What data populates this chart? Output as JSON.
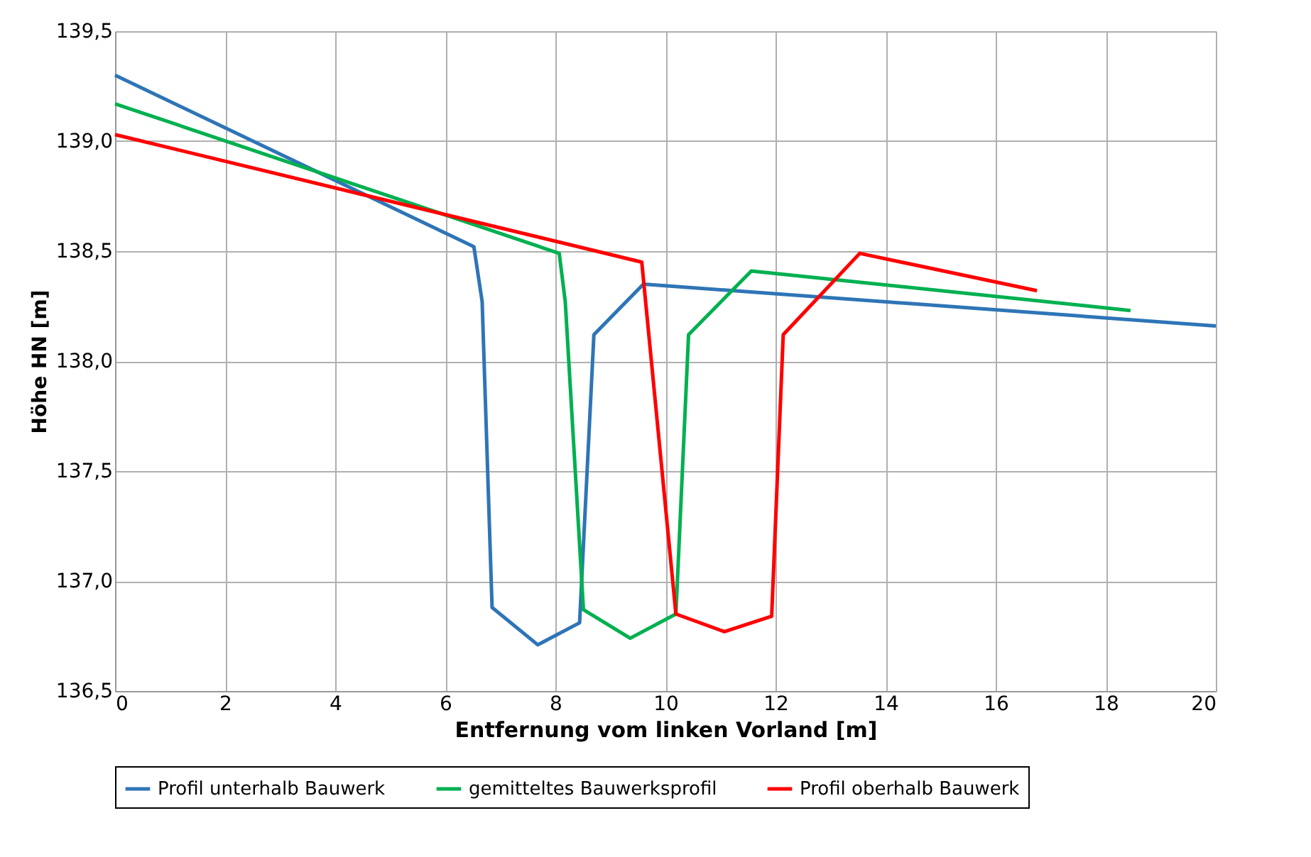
{
  "chart_data": {
    "type": "line",
    "xlabel": "Entfernung vom linken Vorland [m]",
    "ylabel": "Höhe HN [m]",
    "xlim": [
      0,
      20
    ],
    "xticks": [
      0,
      2,
      4,
      6,
      8,
      10,
      12,
      14,
      16,
      18,
      20
    ],
    "ylim": [
      136.5,
      139.5
    ],
    "yticks": [
      {
        "value": 136.5,
        "label": "136,5"
      },
      {
        "value": 137.0,
        "label": "137,0"
      },
      {
        "value": 137.5,
        "label": "137,5"
      },
      {
        "value": 138.0,
        "label": "138,0"
      },
      {
        "value": 138.5,
        "label": "138,5"
      },
      {
        "value": 139.0,
        "label": "139,0"
      },
      {
        "value": 139.5,
        "label": "139,5"
      }
    ],
    "grid": true,
    "legend": "bottom",
    "marker": "none",
    "line_style": "solid",
    "series": [
      {
        "name": "Profil unterhalb Bauwerk",
        "color": "#2e75b6",
        "x": [
          0,
          6.52,
          6.67,
          6.85,
          7.68,
          8.44,
          8.7,
          9.6,
          20
        ],
        "values": [
          139.3,
          138.52,
          138.27,
          136.88,
          136.71,
          136.81,
          138.12,
          138.35,
          138.16
        ]
      },
      {
        "name": "gemitteltes Bauwerksprofil",
        "color": "#00b050",
        "x": [
          0,
          8.07,
          8.18,
          8.51,
          9.36,
          10.19,
          10.42,
          11.56,
          18.45
        ],
        "values": [
          139.17,
          138.49,
          138.27,
          136.87,
          136.74,
          136.85,
          138.12,
          138.41,
          138.23
        ]
      },
      {
        "name": "Profil oberhalb Bauwerk",
        "color": "#ff0000",
        "x": [
          0,
          9.57,
          10.19,
          11.07,
          11.93,
          12.14,
          13.53,
          16.75
        ],
        "values": [
          139.03,
          138.45,
          136.85,
          136.77,
          136.84,
          138.12,
          138.49,
          138.32
        ]
      }
    ]
  }
}
